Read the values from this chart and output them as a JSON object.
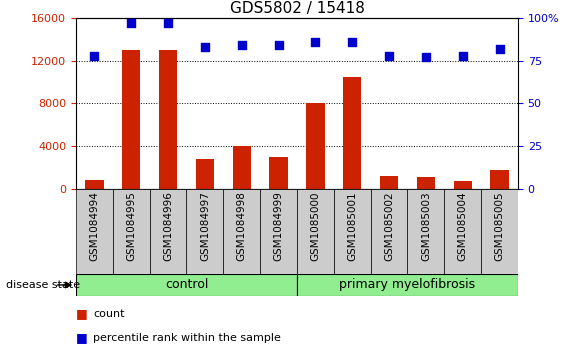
{
  "title": "GDS5802 / 15418",
  "samples": [
    "GSM1084994",
    "GSM1084995",
    "GSM1084996",
    "GSM1084997",
    "GSM1084998",
    "GSM1084999",
    "GSM1085000",
    "GSM1085001",
    "GSM1085002",
    "GSM1085003",
    "GSM1085004",
    "GSM1085005"
  ],
  "counts": [
    800,
    13000,
    13000,
    2800,
    4000,
    3000,
    8000,
    10500,
    1200,
    1100,
    700,
    1800
  ],
  "percentiles": [
    78,
    97,
    97,
    83,
    84,
    84,
    86,
    86,
    78,
    77,
    78,
    82
  ],
  "bar_color": "#CC2200",
  "dot_color": "#0000CC",
  "left_ylim": [
    0,
    16000
  ],
  "right_ylim": [
    0,
    100
  ],
  "left_yticks": [
    0,
    4000,
    8000,
    12000,
    16000
  ],
  "right_yticks": [
    0,
    25,
    50,
    75,
    100
  ],
  "right_yticklabels": [
    "0",
    "25",
    "50",
    "75",
    "100%"
  ],
  "bar_width": 0.5,
  "dot_size": 35,
  "grid_color": "#000000",
  "tick_color_left": "#CC2200",
  "tick_color_right": "#0000CC",
  "control_count": 6,
  "total_count": 12,
  "group_label_left": "control",
  "group_label_right": "primary myelofibrosis",
  "group_color": "#90EE90",
  "disease_state_label": "disease state",
  "legend_items": [
    {
      "color": "#CC2200",
      "label": "count"
    },
    {
      "color": "#0000CC",
      "label": "percentile rank within the sample"
    }
  ],
  "label_box_color": "#CCCCCC",
  "title_fontsize": 11,
  "tick_fontsize": 8,
  "label_fontsize": 7.5,
  "group_fontsize": 9,
  "disease_state_fontsize": 8,
  "legend_fontsize": 8
}
